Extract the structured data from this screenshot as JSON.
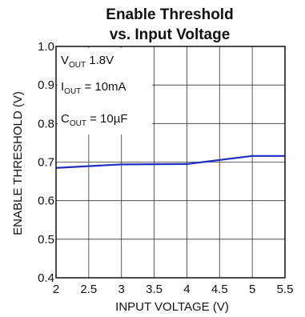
{
  "chart_data": {
    "type": "line",
    "title_lines": [
      "Enable Threshold",
      "vs. Input Voltage"
    ],
    "xlabel": "INPUT VOLTAGE (V)",
    "ylabel": "ENABLE THRESHOLD (V)",
    "xlim": [
      2,
      5.5
    ],
    "ylim": [
      0.4,
      1.0
    ],
    "xticks": [
      "2",
      "2.5",
      "3",
      "3.5",
      "4",
      "4.5",
      "5",
      "5.5"
    ],
    "yticks": [
      "0.4",
      "0.5",
      "0.6",
      "0.7",
      "0.8",
      "0.9",
      "1.0"
    ],
    "grid": true,
    "annotations": [
      {
        "main": "V",
        "sub": "OUT",
        "rest": " 1.8V"
      },
      {
        "main": "I",
        "sub": "OUT",
        "rest": " = 10mA"
      },
      {
        "main": "C",
        "sub": "OUT",
        "rest": " = 10µF"
      }
    ],
    "series": [
      {
        "color": "#1f2fbf",
        "x": [
          2.0,
          3.0,
          4.0,
          5.0,
          5.5
        ],
        "y": [
          0.685,
          0.694,
          0.695,
          0.716,
          0.716
        ]
      }
    ]
  }
}
